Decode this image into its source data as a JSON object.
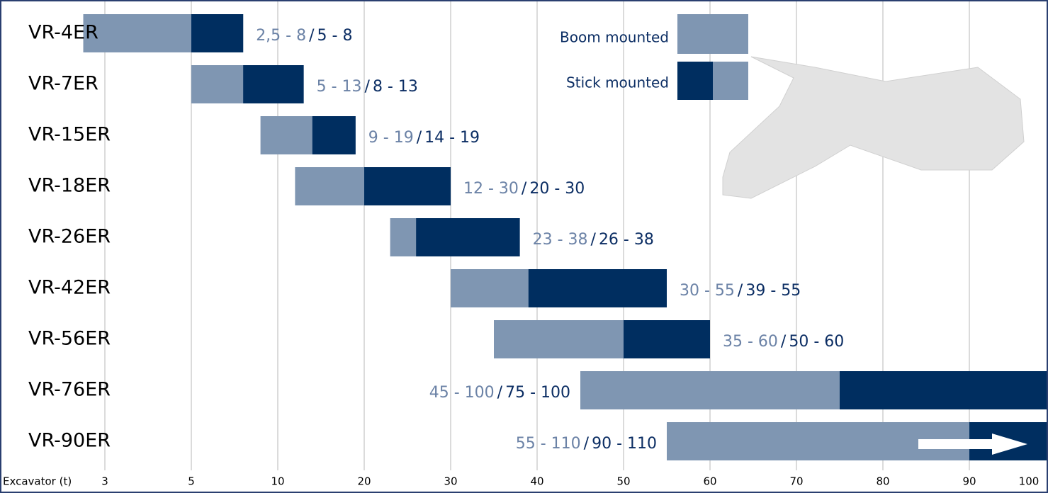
{
  "chart_data": {
    "type": "range-bar",
    "categories": [
      "VR-4ER",
      "VR-7ER",
      "VR-15ER",
      "VR-18ER",
      "VR-26ER",
      "VR-42ER",
      "VR-56ER",
      "VR-76ER",
      "VR-90ER"
    ],
    "series": [
      {
        "name": "Boom mounted",
        "color": "#7f96b2",
        "values": [
          [
            2.5,
            8
          ],
          [
            5,
            13
          ],
          [
            9,
            19
          ],
          [
            12,
            30
          ],
          [
            23,
            38
          ],
          [
            30,
            55
          ],
          [
            35,
            60
          ],
          [
            45,
            100
          ],
          [
            55,
            110
          ]
        ],
        "value_labels": [
          "2,5 - 8",
          "5 - 13",
          "9 - 19",
          "12 - 30",
          "23 - 38",
          "30 - 55",
          "35 - 60",
          "45 - 100",
          "55 - 110"
        ]
      },
      {
        "name": "Stick mounted",
        "color": "#002e60",
        "values": [
          [
            5,
            8
          ],
          [
            8,
            13
          ],
          [
            14,
            19
          ],
          [
            20,
            30
          ],
          [
            26,
            38
          ],
          [
            39,
            55
          ],
          [
            50,
            60
          ],
          [
            75,
            100
          ],
          [
            90,
            110
          ]
        ],
        "value_labels": [
          "5 - 8",
          "8 - 13",
          "14 - 19",
          "20 - 30",
          "26 - 38",
          "39 - 55",
          "50 - 60",
          "75 - 100",
          "90 - 110"
        ]
      }
    ],
    "separator": "/",
    "x_label": "Excavator (t)",
    "xticks": [
      3,
      5,
      10,
      20,
      30,
      40,
      50,
      60,
      70,
      80,
      90,
      100
    ],
    "grid": true
  }
}
